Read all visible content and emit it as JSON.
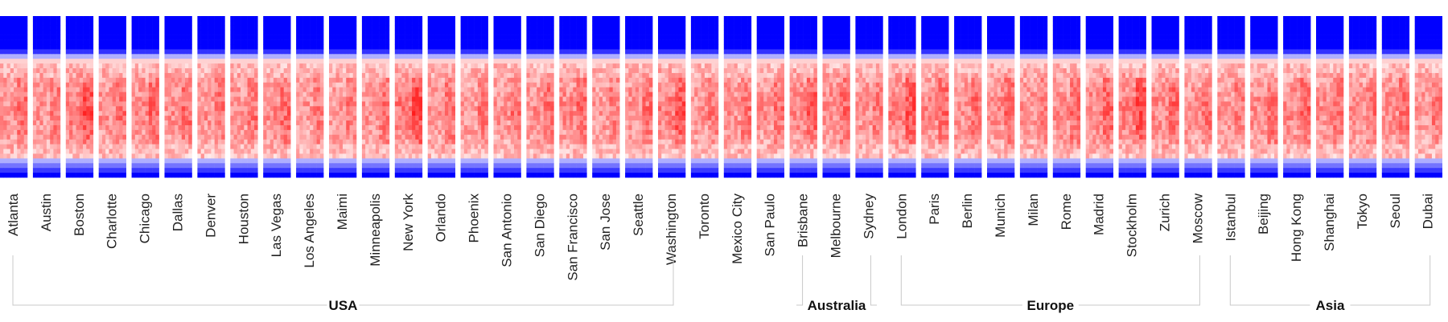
{
  "chart_data": {
    "type": "heatmap",
    "title": "",
    "xlabel": "",
    "ylabel": "",
    "colors": {
      "low": "#0000ff",
      "mid": "#ffffff",
      "high": "#ff0000"
    },
    "cities": [
      "Atlanta",
      "Austin",
      "Boston",
      "Charlotte",
      "Chicago",
      "Dallas",
      "Denver",
      "Houston",
      "Las Vegas",
      "Los Angeles",
      "Maimi",
      "Minneapolis",
      "New York",
      "Orlando",
      "Phoenix",
      "San Antonio",
      "San Diego",
      "San Francisco",
      "San Jose",
      "Seattle",
      "Washington",
      "Toronto",
      "Mexico City",
      "San Paulo",
      "Brisbane",
      "Melbourne",
      "Sydney",
      "London",
      "Paris",
      "Berlin",
      "Munich",
      "Milan",
      "Rome",
      "Madrid",
      "Stockholm",
      "Zurich",
      "Moscow",
      "Istanbul",
      "Beijing",
      "Hong Kong",
      "Shanghai",
      "Tokyo",
      "Seoul",
      "Dubai"
    ],
    "groups": [
      {
        "name": "USA",
        "first": "Atlanta",
        "last": "Washington"
      },
      {
        "name": "Australia",
        "first": "Brisbane",
        "last": "Sydney"
      },
      {
        "name": "Europe",
        "first": "London",
        "last": "Moscow"
      },
      {
        "name": "Asia",
        "first": "Istanbul",
        "last": "Dubai"
      }
    ],
    "intensity": [
      0.55,
      0.45,
      0.75,
      0.5,
      0.6,
      0.55,
      0.5,
      0.5,
      0.55,
      0.45,
      0.45,
      0.5,
      0.8,
      0.5,
      0.45,
      0.5,
      0.55,
      0.6,
      0.45,
      0.5,
      0.7,
      0.45,
      0.5,
      0.5,
      0.65,
      0.55,
      0.45,
      0.7,
      0.6,
      0.55,
      0.55,
      0.45,
      0.55,
      0.6,
      0.75,
      0.6,
      0.5,
      0.45,
      0.55,
      0.6,
      0.55,
      0.5,
      0.55,
      0.45
    ]
  }
}
